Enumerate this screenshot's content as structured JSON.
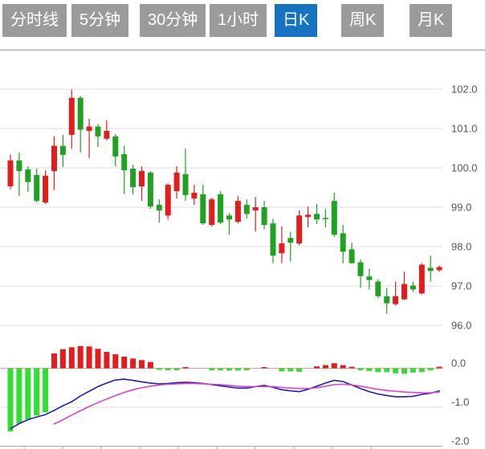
{
  "toolbar": {
    "tabs": [
      {
        "label": "分时线",
        "active": false
      },
      {
        "label": "5分钟",
        "active": false
      },
      {
        "label": "30分钟",
        "active": false
      },
      {
        "label": "1小时",
        "active": false
      },
      {
        "label": "日K",
        "active": true
      },
      {
        "label": "周K",
        "active": false
      },
      {
        "label": "月K",
        "active": false
      }
    ]
  },
  "colors": {
    "tab_bg": "#9b9b9b",
    "tab_active_bg": "#1673c2",
    "tab_text": "#ffffff",
    "candle_up": "#e11d1d",
    "candle_down": "#21a121",
    "macd_up": "#e11d1d",
    "macd_down": "#33dd33",
    "dif_line": "#2020b0",
    "dea_line": "#e040c8",
    "grid": "#dddddd",
    "axis": "#aaaaaa",
    "zero_line": "#ee9999",
    "label": "#555555"
  },
  "chart_data": {
    "type": "candlestick",
    "title": "",
    "panels": [
      "price-candles",
      "macd-indicator"
    ],
    "grid": true,
    "legend_position": "none",
    "price_axis_labels": [
      "102.0",
      "101.0",
      "100.0",
      "99.0",
      "98.0",
      "97.0",
      "96.0"
    ],
    "price_axis_values": [
      102,
      101,
      100,
      99,
      98,
      97,
      96
    ],
    "price_ylim": [
      95.8,
      102.4
    ],
    "macd_axis_labels": [
      "0.0",
      "-1.0",
      "-2.0"
    ],
    "macd_axis_values": [
      0,
      -1,
      -2
    ],
    "macd_ylim": [
      -2.1,
      0.7
    ],
    "candles_ohlc": [
      [
        99.53,
        100.34,
        99.46,
        100.19
      ],
      [
        100.19,
        100.39,
        99.29,
        99.92
      ],
      [
        99.96,
        100.04,
        99.39,
        99.64
      ],
      [
        99.82,
        99.98,
        99.12,
        99.16
      ],
      [
        99.12,
        99.94,
        99.08,
        99.8
      ],
      [
        99.92,
        100.8,
        99.44,
        100.56
      ],
      [
        100.56,
        100.84,
        100.02,
        100.33
      ],
      [
        100.84,
        101.99,
        100.49,
        101.78
      ],
      [
        101.78,
        101.83,
        100.39,
        100.97
      ],
      [
        100.94,
        101.25,
        100.25,
        101.05
      ],
      [
        101.05,
        101.11,
        100.53,
        100.8
      ],
      [
        100.74,
        101.21,
        100.7,
        100.94
      ],
      [
        100.8,
        100.86,
        100.04,
        100.29
      ],
      [
        100.35,
        100.56,
        99.33,
        99.94
      ],
      [
        99.98,
        100.08,
        99.33,
        99.51
      ],
      [
        99.53,
        100.04,
        99.16,
        99.92
      ],
      [
        99.88,
        99.92,
        98.96,
        99.02
      ],
      [
        99.06,
        99.2,
        98.61,
        98.92
      ],
      [
        98.79,
        99.61,
        98.69,
        99.57
      ],
      [
        99.41,
        100.04,
        99.22,
        99.88
      ],
      [
        99.84,
        100.49,
        99.16,
        99.31
      ],
      [
        99.22,
        99.57,
        99.06,
        99.37
      ],
      [
        99.33,
        99.57,
        98.55,
        98.59
      ],
      [
        98.55,
        99.24,
        98.51,
        99.2
      ],
      [
        99.33,
        99.41,
        98.57,
        98.61
      ],
      [
        98.79,
        98.85,
        98.3,
        98.69
      ],
      [
        98.63,
        99.28,
        98.59,
        99.16
      ],
      [
        99.06,
        99.2,
        98.71,
        98.83
      ],
      [
        98.92,
        99.26,
        98.38,
        99.0
      ],
      [
        99.0,
        99.16,
        98.44,
        98.55
      ],
      [
        98.59,
        98.71,
        97.58,
        97.77
      ],
      [
        97.83,
        98.51,
        97.58,
        98.08
      ],
      [
        98.22,
        98.38,
        97.62,
        98.1
      ],
      [
        98.08,
        98.92,
        98.03,
        98.79
      ],
      [
        98.75,
        99.02,
        98.49,
        98.81
      ],
      [
        98.83,
        99.08,
        98.57,
        98.69
      ],
      [
        98.73,
        98.96,
        98.49,
        98.7
      ],
      [
        99.16,
        99.37,
        98.24,
        98.3
      ],
      [
        98.34,
        98.55,
        97.58,
        97.87
      ],
      [
        97.93,
        98.1,
        97.56,
        97.58
      ],
      [
        97.6,
        97.67,
        96.95,
        97.25
      ],
      [
        97.24,
        97.44,
        96.91,
        97.15
      ],
      [
        97.11,
        97.17,
        96.7,
        96.74
      ],
      [
        96.74,
        96.95,
        96.29,
        96.56
      ],
      [
        96.54,
        97.11,
        96.5,
        96.74
      ],
      [
        96.66,
        97.36,
        96.64,
        97.05
      ],
      [
        97.01,
        97.11,
        96.85,
        96.91
      ],
      [
        96.81,
        97.58,
        96.78,
        97.54
      ],
      [
        97.46,
        97.77,
        97.11,
        97.38
      ],
      [
        97.4,
        97.52,
        97.36,
        97.48
      ]
    ],
    "macd": {
      "histogram": [
        -1.62,
        -1.42,
        -1.31,
        -1.21,
        -1.13,
        0.38,
        0.49,
        0.54,
        0.57,
        0.56,
        0.5,
        0.42,
        0.36,
        0.3,
        0.25,
        0.21,
        0.16,
        -0.04,
        -0.05,
        -0.05,
        0.03,
        0,
        0,
        -0.05,
        -0.05,
        -0.06,
        -0.06,
        -0.05,
        0,
        0.03,
        0,
        -0.08,
        -0.08,
        -0.09,
        0,
        0.05,
        0.08,
        0.13,
        0.08,
        0.04,
        -0.05,
        -0.07,
        -0.1,
        -0.1,
        -0.13,
        -0.14,
        -0.11,
        -0.1,
        -0.05,
        0.04
      ],
      "dif": [
        -1.55,
        -1.42,
        -1.32,
        -1.25,
        -1.19,
        -1.08,
        -0.96,
        -0.86,
        -0.71,
        -0.59,
        -0.47,
        -0.38,
        -0.3,
        -0.28,
        -0.31,
        -0.35,
        -0.38,
        -0.4,
        -0.39,
        -0.37,
        -0.36,
        -0.37,
        -0.39,
        -0.42,
        -0.45,
        -0.48,
        -0.51,
        -0.51,
        -0.47,
        -0.44,
        -0.49,
        -0.55,
        -0.58,
        -0.6,
        -0.54,
        -0.46,
        -0.38,
        -0.31,
        -0.34,
        -0.43,
        -0.52,
        -0.6,
        -0.66,
        -0.7,
        -0.73,
        -0.73,
        -0.72,
        -0.67,
        -0.64,
        -0.58
      ],
      "dea": [
        null,
        null,
        null,
        null,
        null,
        -1.43,
        -1.32,
        -1.2,
        -1.09,
        -0.98,
        -0.88,
        -0.79,
        -0.7,
        -0.62,
        -0.55,
        -0.5,
        -0.46,
        -0.43,
        -0.41,
        -0.4,
        -0.39,
        -0.39,
        -0.4,
        -0.41,
        -0.42,
        -0.44,
        -0.46,
        -0.47,
        -0.47,
        -0.47,
        -0.47,
        -0.49,
        -0.51,
        -0.52,
        -0.52,
        -0.5,
        -0.46,
        -0.42,
        -0.41,
        -0.43,
        -0.46,
        -0.5,
        -0.54,
        -0.57,
        -0.59,
        -0.61,
        -0.62,
        -0.63,
        -0.63,
        -0.61
      ]
    }
  }
}
